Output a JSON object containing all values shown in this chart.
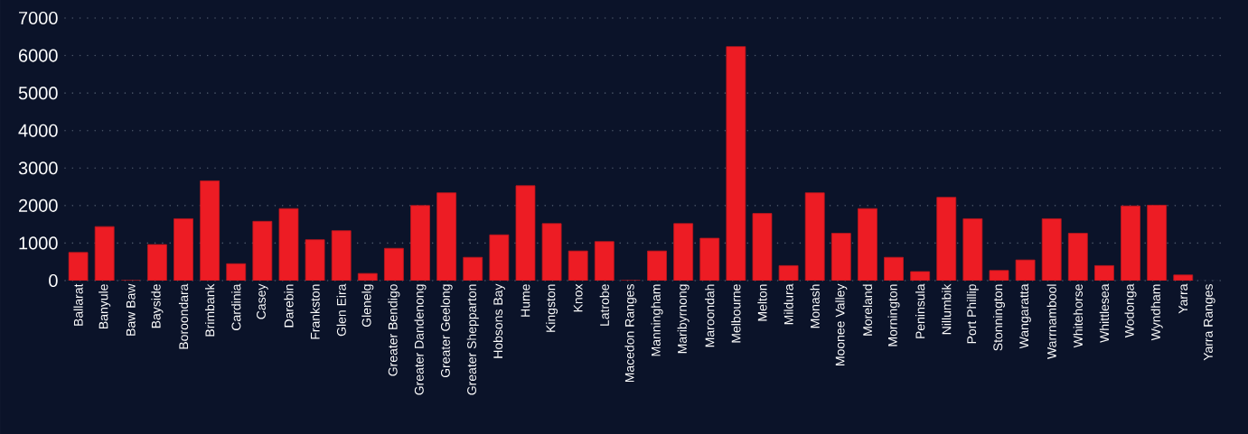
{
  "chart_data": {
    "type": "bar",
    "categories": [
      "Ballarat",
      "Banyule",
      "Baw Baw",
      "Bayside",
      "Boroondara",
      "Brimbank",
      "Cardinia",
      "Casey",
      "Darebin",
      "Frankston",
      "Glen Eira",
      "Glenelg",
      "Greater Bendigo",
      "Greater Dandenong",
      "Greater Geelong",
      "Greater Shepparton",
      "Hobsons Bay",
      "Hume",
      "Kingston",
      "Knox",
      "Latrobe",
      "Macedon Ranges",
      "Manningham",
      "Maribyrnong",
      "Maroondah",
      "Melbourne",
      "Melton",
      "Mildura",
      "Monash",
      "Moonee Valley",
      "Moreland",
      "Mornington",
      "Peninsula",
      "Nillumbik",
      "Port Phillip",
      "Stonnington",
      "Wangaratta",
      "Warrnambool",
      "Whitehorse",
      "Whittlesea",
      "Wodonga",
      "Wyndham",
      "Yarra",
      "Yarra Ranges"
    ],
    "values": [
      750,
      1440,
      0,
      960,
      1650,
      2660,
      450,
      1580,
      1920,
      1090,
      1330,
      190,
      860,
      2000,
      2340,
      620,
      1220,
      2530,
      1520,
      790,
      1040,
      0,
      790,
      1520,
      1130,
      6240,
      1790,
      400,
      2340,
      1260,
      1920,
      620,
      240,
      2220,
      1650,
      270,
      550,
      1650,
      1260,
      400,
      1990,
      2010,
      150,
      null
    ],
    "color": "#ed1c24",
    "ylim": [
      0,
      7000
    ],
    "yticks": [
      0,
      1000,
      2000,
      3000,
      4000,
      5000,
      6000,
      7000
    ],
    "grid": "y"
  }
}
